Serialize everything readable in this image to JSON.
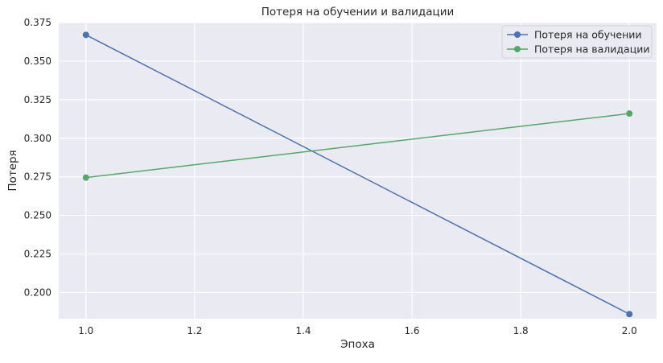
{
  "chart_data": {
    "type": "line",
    "title": "Потеря на обучении и валидации",
    "xlabel": "Эпоха",
    "ylabel": "Потеря",
    "xlim": [
      0.95,
      2.05
    ],
    "ylim": [
      0.183,
      0.375
    ],
    "xticks": [
      1.0,
      1.2,
      1.4,
      1.6,
      1.8,
      2.0
    ],
    "xtick_labels": [
      "1.0",
      "1.2",
      "1.4",
      "1.6",
      "1.8",
      "2.0"
    ],
    "yticks": [
      0.2,
      0.225,
      0.25,
      0.275,
      0.3,
      0.325,
      0.35,
      0.375
    ],
    "ytick_labels": [
      "0.200",
      "0.225",
      "0.250",
      "0.275",
      "0.300",
      "0.325",
      "0.350",
      "0.375"
    ],
    "grid": true,
    "legend_position": "top-right",
    "series": [
      {
        "name": "Потеря на обучении",
        "color": "#4c72b0",
        "marker": "circle",
        "x": [
          1.0,
          2.0
        ],
        "y": [
          0.367,
          0.186
        ]
      },
      {
        "name": "Потеря на валидации",
        "color": "#55a868",
        "marker": "circle",
        "x": [
          1.0,
          2.0
        ],
        "y": [
          0.2745,
          0.316
        ]
      }
    ],
    "background_color": "#eaeaf2",
    "grid_color": "#ffffff"
  }
}
